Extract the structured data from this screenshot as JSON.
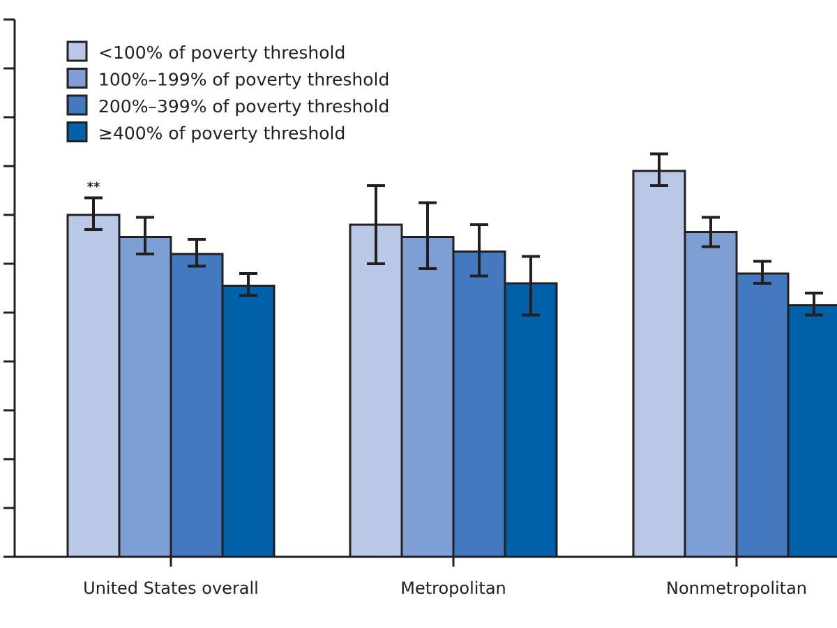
{
  "chart_data": {
    "type": "bar",
    "categories": [
      "United States overall",
      "Metropolitan",
      "Nonmetropolitan"
    ],
    "ylim": [
      0,
      11
    ],
    "y_tick_count": 12,
    "tick_labels_visible": false,
    "grid": false,
    "legend_position": "top-left",
    "series": [
      {
        "name": "<100% of poverty threshold",
        "color": "#b9c8e6",
        "values": [
          7.0,
          6.8,
          7.9
        ],
        "ci_low": [
          6.7,
          6.0,
          7.6
        ],
        "ci_high": [
          7.35,
          7.6,
          8.25
        ]
      },
      {
        "name": "100%–199% of poverty threshold",
        "color": "#7d9fd3",
        "values": [
          6.55,
          6.55,
          6.65
        ],
        "ci_low": [
          6.2,
          5.9,
          6.35
        ],
        "ci_high": [
          6.95,
          7.25,
          6.95
        ]
      },
      {
        "name": "200%–399% of poverty threshold",
        "color": "#4279bf",
        "values": [
          6.2,
          6.25,
          5.8
        ],
        "ci_low": [
          5.95,
          5.75,
          5.6
        ],
        "ci_high": [
          6.5,
          6.8,
          6.05
        ]
      },
      {
        "name": "≥400% of poverty threshold",
        "color": "#0060a8",
        "values": [
          5.55,
          5.6,
          5.15
        ],
        "ci_low": [
          5.35,
          4.95,
          4.95
        ],
        "ci_high": [
          5.8,
          6.15,
          5.4
        ]
      }
    ],
    "annotations": [
      {
        "text": "**",
        "category": 0,
        "series": 0
      }
    ]
  }
}
